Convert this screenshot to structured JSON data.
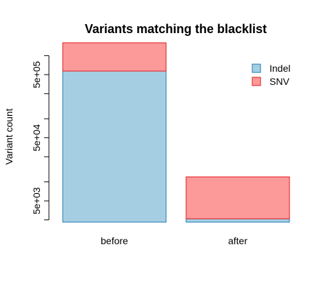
{
  "chart_data": {
    "type": "bar",
    "stacked": true,
    "title": "Variants matching the blacklist",
    "xlabel": "",
    "ylabel": "Variant count",
    "y_scale": "log",
    "ylim": [
      2300,
      1600000
    ],
    "categories": [
      "before",
      "after"
    ],
    "series": [
      {
        "name": "Indel",
        "color": "#a6cee3",
        "border": "#1f78b4",
        "values": [
          570000,
          2600
        ]
      },
      {
        "name": "SNV",
        "color": "#fb9a99",
        "border": "#e31a1c",
        "values": [
          1030000,
          9400
        ]
      }
    ],
    "y_ticks": [
      {
        "value": 2500,
        "label": ""
      },
      {
        "value": 5000,
        "label": "5e+03"
      },
      {
        "value": 10000,
        "label": ""
      },
      {
        "value": 25000,
        "label": ""
      },
      {
        "value": 50000,
        "label": "5e+04"
      },
      {
        "value": 100000,
        "label": ""
      },
      {
        "value": 250000,
        "label": ""
      },
      {
        "value": 500000,
        "label": "5e+05"
      },
      {
        "value": 1000000,
        "label": ""
      }
    ],
    "legend": {
      "position": "top-right"
    },
    "grid": false
  }
}
